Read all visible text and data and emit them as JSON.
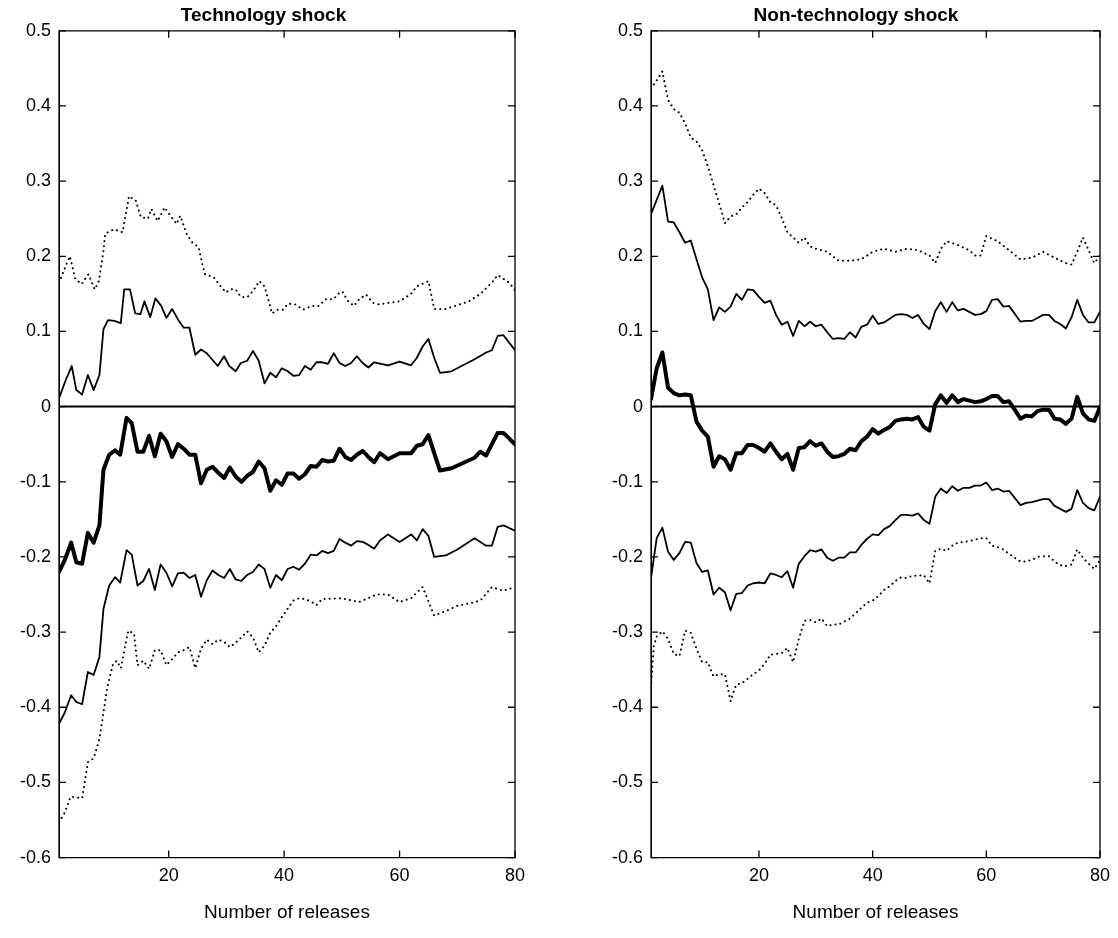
{
  "chart_data": [
    {
      "type": "line",
      "title": "Technology shock",
      "xlabel": "Number of releases",
      "xlim": [
        1,
        80
      ],
      "xticks": [
        20,
        40,
        60,
        80
      ],
      "ylim": [
        -0.6,
        0.5
      ],
      "yticks": [
        -0.6,
        -0.5,
        -0.4,
        -0.3,
        -0.2,
        -0.1,
        0,
        0.1,
        0.2,
        0.3,
        0.4,
        0.5
      ],
      "ref_lines": [
        {
          "axis": "y",
          "value": 0,
          "color": "#000000"
        }
      ],
      "series": [
        {
          "color": "#000000",
          "line_style": "dotted",
          "x": [
            1,
            2.3,
            2.9,
            3.8,
            4.9,
            6.1,
            7.2,
            7.9,
            8.7,
            9,
            10.5,
            12,
            12.9,
            13.1,
            14.3,
            15.2,
            16.4,
            17,
            18.1,
            19.3,
            20.5,
            21.4,
            22,
            23.1,
            24,
            25.2,
            25.8,
            26.3,
            27.8,
            28.7,
            29.9,
            30.7,
            31.6,
            32.5,
            33.7,
            34.8,
            35.7,
            36.6,
            37.5,
            37.9,
            38.9,
            39.8,
            40.7,
            41.9,
            43.3,
            44.8,
            46,
            47.2,
            48.6,
            49.5,
            50.1,
            51,
            52.1,
            53,
            54.2,
            55.4,
            56.5,
            58,
            60,
            62,
            63,
            65,
            66,
            68,
            70,
            72,
            74,
            76,
            77,
            79,
            80
          ],
          "values": [
            0.165,
            0.19,
            0.2,
            0.17,
            0.163,
            0.176,
            0.156,
            0.167,
            0.207,
            0.23,
            0.236,
            0.232,
            0.27,
            0.28,
            0.274,
            0.252,
            0.25,
            0.263,
            0.247,
            0.265,
            0.252,
            0.243,
            0.254,
            0.23,
            0.219,
            0.212,
            0.19,
            0.176,
            0.172,
            0.163,
            0.152,
            0.156,
            0.156,
            0.146,
            0.146,
            0.156,
            0.167,
            0.16,
            0.136,
            0.124,
            0.129,
            0.129,
            0.137,
            0.136,
            0.129,
            0.134,
            0.134,
            0.143,
            0.143,
            0.151,
            0.153,
            0.141,
            0.134,
            0.143,
            0.149,
            0.138,
            0.136,
            0.138,
            0.14,
            0.15,
            0.16,
            0.167,
            0.13,
            0.13,
            0.135,
            0.14,
            0.15,
            0.165,
            0.175,
            0.165,
            0.155
          ]
        },
        {
          "color": "#000000",
          "line_style": "solid",
          "x": [
            1,
            2.2,
            3.2,
            4,
            5,
            6,
            7,
            8,
            8.7,
            9.5,
            10.6,
            11.7,
            12.3,
            13.3,
            14.2,
            15.1,
            15.8,
            16.8,
            17.7,
            18.7,
            19.6,
            20.6,
            21.6,
            22.6,
            23.6,
            24.6,
            25.6,
            26.6,
            27.6,
            28.5,
            29.6,
            30.5,
            31.6,
            32.5,
            33.6,
            34.6,
            35.6,
            36.6,
            37.6,
            38.6,
            39.6,
            40.6,
            41.6,
            42.6,
            43.6,
            44.6,
            45.6,
            46.6,
            47.6,
            48.6,
            49.6,
            50.6,
            51.6,
            52.6,
            53.6,
            54.6,
            55.6,
            58,
            60,
            62,
            63,
            64,
            65,
            66,
            67,
            69,
            71,
            73,
            75,
            76,
            77,
            78,
            80
          ],
          "values": [
            0.011,
            0.036,
            0.054,
            0.022,
            0.016,
            0.042,
            0.022,
            0.042,
            0.103,
            0.115,
            0.114,
            0.111,
            0.156,
            0.156,
            0.124,
            0.123,
            0.14,
            0.119,
            0.144,
            0.134,
            0.118,
            0.13,
            0.116,
            0.105,
            0.105,
            0.069,
            0.076,
            0.071,
            0.062,
            0.054,
            0.067,
            0.054,
            0.047,
            0.058,
            0.061,
            0.074,
            0.061,
            0.031,
            0.045,
            0.039,
            0.051,
            0.047,
            0.041,
            0.042,
            0.054,
            0.049,
            0.059,
            0.059,
            0.057,
            0.071,
            0.058,
            0.054,
            0.058,
            0.067,
            0.058,
            0.052,
            0.059,
            0.055,
            0.06,
            0.055,
            0.065,
            0.08,
            0.09,
            0.065,
            0.045,
            0.047,
            0.055,
            0.063,
            0.072,
            0.075,
            0.094,
            0.095,
            0.075
          ]
        },
        {
          "color": "#000000",
          "line_style": "solid",
          "x": [
            1,
            2,
            3.1,
            4,
            5,
            6,
            7,
            8,
            8.7,
            9.7,
            10.7,
            11.6,
            12.7,
            13.6,
            14.6,
            15.6,
            16.6,
            17.6,
            18.6,
            19.6,
            20.6,
            21.6,
            22.6,
            23.6,
            24.6,
            25.6,
            26.6,
            27.6,
            28.6,
            29.6,
            30.6,
            31.6,
            32.6,
            33.6,
            34.6,
            35.6,
            36.6,
            37.6,
            38.6,
            39.6,
            40.6,
            41.6,
            42.6,
            43.6,
            44.6,
            45.6,
            46.6,
            47.6,
            48.6,
            49.6,
            50.6,
            51.6,
            52.6,
            53.6,
            54.6,
            55.6,
            56.6,
            58,
            60,
            62,
            63,
            64,
            65,
            66,
            67,
            69,
            71,
            73,
            74,
            75,
            76,
            77,
            78,
            80
          ],
          "values": [
            -0.22,
            -0.204,
            -0.181,
            -0.207,
            -0.209,
            -0.168,
            -0.181,
            -0.158,
            -0.084,
            -0.064,
            -0.058,
            -0.064,
            -0.015,
            -0.022,
            -0.06,
            -0.06,
            -0.039,
            -0.066,
            -0.036,
            -0.046,
            -0.067,
            -0.05,
            -0.056,
            -0.064,
            -0.064,
            -0.102,
            -0.084,
            -0.08,
            -0.088,
            -0.095,
            -0.081,
            -0.093,
            -0.1,
            -0.092,
            -0.087,
            -0.073,
            -0.082,
            -0.112,
            -0.098,
            -0.104,
            -0.089,
            -0.089,
            -0.096,
            -0.09,
            -0.079,
            -0.08,
            -0.071,
            -0.073,
            -0.072,
            -0.056,
            -0.067,
            -0.071,
            -0.064,
            -0.059,
            -0.067,
            -0.074,
            -0.062,
            -0.07,
            -0.062,
            -0.062,
            -0.052,
            -0.05,
            -0.038,
            -0.062,
            -0.085,
            -0.082,
            -0.075,
            -0.068,
            -0.06,
            -0.065,
            -0.05,
            -0.035,
            -0.035,
            -0.05
          ]
        },
        {
          "color": "#000000",
          "line_style": "solid",
          "x": [
            1,
            2,
            3.1,
            4,
            5,
            6,
            7,
            8,
            8.7,
            9.7,
            10.7,
            11.6,
            12.7,
            13.6,
            14.6,
            15.6,
            16.6,
            17.6,
            18.6,
            19.6,
            20.6,
            21.6,
            22.6,
            23.6,
            24.6,
            25.6,
            26.6,
            27.6,
            28.6,
            29.6,
            30.6,
            31.6,
            32.6,
            33.6,
            34.6,
            35.6,
            36.6,
            37.6,
            38.6,
            39.6,
            40.6,
            41.6,
            42.6,
            43.6,
            44.6,
            45.6,
            46.6,
            47.6,
            48.6,
            49.6,
            50.6,
            51.6,
            52.6,
            53.6,
            54.6,
            55.6,
            56.6,
            58,
            60,
            62,
            63,
            64,
            65,
            66,
            68,
            70,
            72,
            73,
            75,
            76,
            77,
            78,
            80
          ],
          "values": [
            -0.422,
            -0.407,
            -0.384,
            -0.393,
            -0.396,
            -0.353,
            -0.357,
            -0.333,
            -0.269,
            -0.238,
            -0.227,
            -0.234,
            -0.191,
            -0.197,
            -0.238,
            -0.232,
            -0.216,
            -0.244,
            -0.21,
            -0.221,
            -0.239,
            -0.222,
            -0.221,
            -0.228,
            -0.224,
            -0.253,
            -0.231,
            -0.218,
            -0.224,
            -0.228,
            -0.216,
            -0.23,
            -0.232,
            -0.224,
            -0.22,
            -0.21,
            -0.216,
            -0.241,
            -0.224,
            -0.231,
            -0.216,
            -0.213,
            -0.217,
            -0.209,
            -0.197,
            -0.198,
            -0.192,
            -0.195,
            -0.192,
            -0.176,
            -0.181,
            -0.185,
            -0.179,
            -0.18,
            -0.184,
            -0.189,
            -0.178,
            -0.17,
            -0.18,
            -0.17,
            -0.178,
            -0.163,
            -0.172,
            -0.2,
            -0.198,
            -0.19,
            -0.18,
            -0.175,
            -0.185,
            -0.185,
            -0.16,
            -0.158,
            -0.165
          ]
        },
        {
          "color": "#000000",
          "line_style": "dotted",
          "x": [
            1,
            2,
            3,
            4,
            5,
            6,
            7,
            8,
            8.7,
            9.3,
            10.3,
            11,
            11.7,
            12.6,
            13,
            14,
            14.6,
            15.6,
            16.6,
            17.6,
            18.6,
            19.6,
            20.6,
            21.6,
            22.6,
            23.6,
            24.6,
            25.6,
            26.6,
            27.6,
            28.6,
            29.6,
            30.6,
            31.6,
            32.6,
            33.6,
            34.6,
            35.6,
            36.6,
            37.6,
            38.6,
            39.6,
            40.6,
            41.6,
            42.6,
            43.6,
            44.6,
            45.6,
            46.6,
            50,
            53,
            56,
            58,
            60,
            62,
            64,
            66,
            68,
            70,
            72,
            74,
            76,
            78,
            80
          ],
          "values": [
            -0.553,
            -0.54,
            -0.519,
            -0.52,
            -0.521,
            -0.473,
            -0.468,
            -0.442,
            -0.407,
            -0.376,
            -0.344,
            -0.338,
            -0.348,
            -0.313,
            -0.298,
            -0.302,
            -0.344,
            -0.338,
            -0.349,
            -0.324,
            -0.324,
            -0.344,
            -0.336,
            -0.327,
            -0.324,
            -0.32,
            -0.348,
            -0.322,
            -0.31,
            -0.316,
            -0.31,
            -0.313,
            -0.32,
            -0.314,
            -0.307,
            -0.299,
            -0.307,
            -0.327,
            -0.318,
            -0.301,
            -0.292,
            -0.28,
            -0.269,
            -0.258,
            -0.255,
            -0.256,
            -0.259,
            -0.264,
            -0.256,
            -0.255,
            -0.26,
            -0.25,
            -0.25,
            -0.26,
            -0.255,
            -0.24,
            -0.278,
            -0.272,
            -0.265,
            -0.262,
            -0.258,
            -0.24,
            -0.245,
            -0.24
          ]
        }
      ]
    },
    {
      "type": "line",
      "title": "Non-technology shock",
      "xlabel": "Number of releases",
      "xlim": [
        1,
        80
      ],
      "xticks": [
        20,
        40,
        60,
        80
      ],
      "ylim": [
        -0.6,
        0.5
      ],
      "yticks": [
        -0.6,
        -0.5,
        -0.4,
        -0.3,
        -0.2,
        -0.1,
        0,
        0.1,
        0.2,
        0.3,
        0.4,
        0.5
      ],
      "ref_lines": [
        {
          "axis": "y",
          "value": 0,
          "color": "#000000"
        }
      ],
      "series": [
        {
          "color": "#000000",
          "line_style": "dotted",
          "x": [
            1,
            2,
            3,
            4,
            5,
            6,
            7,
            8,
            9,
            10,
            11,
            12,
            13,
            14,
            15,
            16,
            17,
            18,
            19,
            20,
            21,
            22,
            23,
            24,
            25,
            26,
            27,
            28,
            29,
            30,
            32,
            34,
            36,
            38,
            40,
            42,
            44,
            46,
            48,
            50,
            51,
            52,
            53,
            55,
            57,
            58,
            59,
            60,
            62,
            64,
            66,
            68,
            70,
            72,
            74,
            75,
            76,
            77,
            78,
            79,
            80
          ],
          "values": [
            0.423,
            0.434,
            0.446,
            0.408,
            0.396,
            0.391,
            0.377,
            0.358,
            0.353,
            0.341,
            0.32,
            0.295,
            0.27,
            0.244,
            0.253,
            0.256,
            0.265,
            0.272,
            0.282,
            0.29,
            0.284,
            0.272,
            0.268,
            0.251,
            0.232,
            0.225,
            0.218,
            0.225,
            0.213,
            0.21,
            0.206,
            0.194,
            0.194,
            0.196,
            0.206,
            0.21,
            0.206,
            0.21,
            0.208,
            0.201,
            0.191,
            0.21,
            0.22,
            0.215,
            0.208,
            0.201,
            0.201,
            0.227,
            0.22,
            0.208,
            0.196,
            0.198,
            0.206,
            0.198,
            0.191,
            0.189,
            0.206,
            0.225,
            0.208,
            0.191,
            0.201
          ]
        },
        {
          "color": "#000000",
          "line_style": "solid",
          "x": [
            1,
            2,
            3,
            4,
            5,
            6,
            7,
            8,
            9,
            10,
            11,
            12,
            13,
            14,
            15,
            16,
            17,
            18,
            19,
            20,
            21,
            22,
            23,
            24,
            25,
            26,
            27,
            28,
            29,
            30,
            31,
            32,
            33,
            34,
            35,
            36,
            37,
            38,
            39,
            40,
            41,
            42,
            44,
            45,
            46,
            47,
            48,
            49,
            50,
            51,
            52,
            53,
            54,
            55,
            56,
            57,
            58,
            59,
            60,
            61,
            62,
            63,
            64,
            66,
            67,
            68,
            69,
            70,
            71,
            72,
            73,
            74,
            75,
            76,
            77,
            78,
            79,
            80
          ],
          "values": [
            0.256,
            0.275,
            0.294,
            0.246,
            0.245,
            0.232,
            0.218,
            0.221,
            0.196,
            0.172,
            0.156,
            0.115,
            0.132,
            0.126,
            0.133,
            0.15,
            0.142,
            0.156,
            0.155,
            0.146,
            0.138,
            0.141,
            0.122,
            0.109,
            0.113,
            0.094,
            0.114,
            0.107,
            0.113,
            0.107,
            0.109,
            0.099,
            0.09,
            0.091,
            0.09,
            0.099,
            0.092,
            0.106,
            0.109,
            0.121,
            0.11,
            0.112,
            0.122,
            0.123,
            0.122,
            0.118,
            0.122,
            0.11,
            0.103,
            0.127,
            0.139,
            0.126,
            0.139,
            0.128,
            0.13,
            0.126,
            0.122,
            0.123,
            0.127,
            0.142,
            0.143,
            0.133,
            0.134,
            0.113,
            0.114,
            0.114,
            0.118,
            0.122,
            0.122,
            0.114,
            0.11,
            0.104,
            0.119,
            0.142,
            0.122,
            0.112,
            0.112,
            0.126
          ]
        },
        {
          "color": "#000000",
          "line_style": "solid",
          "x": [
            1,
            2,
            3,
            4,
            5,
            6,
            7,
            8,
            9,
            10,
            11,
            12,
            13,
            14,
            15,
            16,
            17,
            18,
            19,
            20,
            21,
            22,
            23,
            24,
            25,
            26,
            27,
            28,
            29,
            30,
            31,
            32,
            33,
            34,
            35,
            36,
            37,
            38,
            39,
            40,
            41,
            42,
            43,
            44,
            45,
            46,
            47,
            48,
            49,
            50,
            51,
            52,
            53,
            54,
            55,
            56,
            57,
            58,
            59,
            60,
            61,
            62,
            63,
            64,
            65,
            66,
            67,
            68,
            69,
            70,
            71,
            72,
            73,
            74,
            75,
            76,
            77,
            78,
            79,
            80
          ],
          "values": [
            0.01,
            0.051,
            0.072,
            0.025,
            0.018,
            0.015,
            0.016,
            0.015,
            -0.02,
            -0.032,
            -0.04,
            -0.08,
            -0.066,
            -0.07,
            -0.084,
            -0.062,
            -0.062,
            -0.051,
            -0.051,
            -0.055,
            -0.06,
            -0.049,
            -0.06,
            -0.07,
            -0.063,
            -0.084,
            -0.055,
            -0.054,
            -0.046,
            -0.052,
            -0.049,
            -0.06,
            -0.067,
            -0.066,
            -0.063,
            -0.056,
            -0.058,
            -0.046,
            -0.04,
            -0.03,
            -0.036,
            -0.031,
            -0.027,
            -0.019,
            -0.017,
            -0.016,
            -0.017,
            -0.014,
            -0.027,
            -0.032,
            0.003,
            0.015,
            0.005,
            0.015,
            0.006,
            0.01,
            0.008,
            0.006,
            0.007,
            0.01,
            0.014,
            0.014,
            0.006,
            0.007,
            -0.004,
            -0.016,
            -0.012,
            -0.013,
            -0.006,
            -0.004,
            -0.004,
            -0.016,
            -0.017,
            -0.023,
            -0.016,
            0.013,
            -0.009,
            -0.017,
            -0.019,
            -0.001
          ]
        },
        {
          "color": "#000000",
          "line_style": "solid",
          "x": [
            1,
            2,
            3,
            4,
            5,
            6,
            7,
            8,
            9,
            10,
            11,
            12,
            13,
            14,
            15,
            16,
            17,
            18,
            19,
            20,
            21,
            22,
            23,
            24,
            25,
            26,
            27,
            28,
            29,
            30,
            31,
            32,
            33,
            34,
            35,
            36,
            37,
            38,
            39,
            40,
            41,
            42,
            43,
            44,
            45,
            46,
            47,
            48,
            49,
            50,
            51,
            52,
            53,
            54,
            55,
            56,
            57,
            58,
            59,
            60,
            61,
            62,
            63,
            64,
            66,
            67,
            68,
            70,
            71,
            72,
            74,
            75,
            76,
            77,
            78,
            79,
            80
          ],
          "values": [
            -0.228,
            -0.175,
            -0.161,
            -0.193,
            -0.204,
            -0.195,
            -0.18,
            -0.181,
            -0.208,
            -0.22,
            -0.218,
            -0.25,
            -0.241,
            -0.247,
            -0.271,
            -0.249,
            -0.248,
            -0.238,
            -0.235,
            -0.234,
            -0.235,
            -0.222,
            -0.224,
            -0.227,
            -0.219,
            -0.241,
            -0.209,
            -0.199,
            -0.191,
            -0.193,
            -0.19,
            -0.201,
            -0.205,
            -0.201,
            -0.201,
            -0.194,
            -0.194,
            -0.184,
            -0.176,
            -0.17,
            -0.171,
            -0.163,
            -0.159,
            -0.151,
            -0.144,
            -0.144,
            -0.145,
            -0.142,
            -0.151,
            -0.156,
            -0.12,
            -0.109,
            -0.115,
            -0.106,
            -0.112,
            -0.108,
            -0.108,
            -0.105,
            -0.105,
            -0.101,
            -0.111,
            -0.109,
            -0.113,
            -0.112,
            -0.131,
            -0.128,
            -0.127,
            -0.123,
            -0.123,
            -0.132,
            -0.14,
            -0.136,
            -0.111,
            -0.128,
            -0.135,
            -0.138,
            -0.12
          ]
        },
        {
          "color": "#000000",
          "line_style": "dotted",
          "x": [
            1,
            1.5,
            2,
            3,
            4,
            5,
            6,
            7,
            8,
            9,
            10,
            11,
            12,
            13,
            14,
            15,
            15.5,
            16,
            17,
            18,
            19,
            20,
            21,
            22,
            23,
            24,
            25,
            26,
            27,
            28,
            29,
            30,
            31,
            32,
            33,
            34,
            35,
            36,
            37,
            38,
            39,
            40,
            41,
            42,
            43,
            44,
            45,
            46,
            47,
            48,
            49,
            50,
            51,
            52,
            53,
            54,
            55,
            56,
            57,
            58,
            59,
            60,
            61,
            62,
            63,
            64,
            65,
            66,
            67,
            68,
            69,
            70,
            71,
            72,
            73,
            74,
            75,
            76,
            77,
            78,
            79,
            80
          ],
          "values": [
            -0.373,
            -0.318,
            -0.306,
            -0.299,
            -0.309,
            -0.329,
            -0.332,
            -0.298,
            -0.301,
            -0.322,
            -0.34,
            -0.34,
            -0.359,
            -0.356,
            -0.356,
            -0.392,
            -0.38,
            -0.37,
            -0.368,
            -0.362,
            -0.356,
            -0.351,
            -0.342,
            -0.33,
            -0.329,
            -0.328,
            -0.321,
            -0.34,
            -0.309,
            -0.285,
            -0.284,
            -0.287,
            -0.282,
            -0.292,
            -0.29,
            -0.29,
            -0.286,
            -0.282,
            -0.275,
            -0.268,
            -0.261,
            -0.258,
            -0.252,
            -0.244,
            -0.239,
            -0.232,
            -0.227,
            -0.228,
            -0.225,
            -0.225,
            -0.224,
            -0.235,
            -0.192,
            -0.189,
            -0.192,
            -0.185,
            -0.181,
            -0.18,
            -0.179,
            -0.177,
            -0.175,
            -0.175,
            -0.185,
            -0.187,
            -0.19,
            -0.196,
            -0.201,
            -0.206,
            -0.206,
            -0.204,
            -0.2,
            -0.199,
            -0.199,
            -0.206,
            -0.211,
            -0.212,
            -0.21,
            -0.19,
            -0.201,
            -0.209,
            -0.216,
            -0.204
          ]
        }
      ]
    }
  ]
}
